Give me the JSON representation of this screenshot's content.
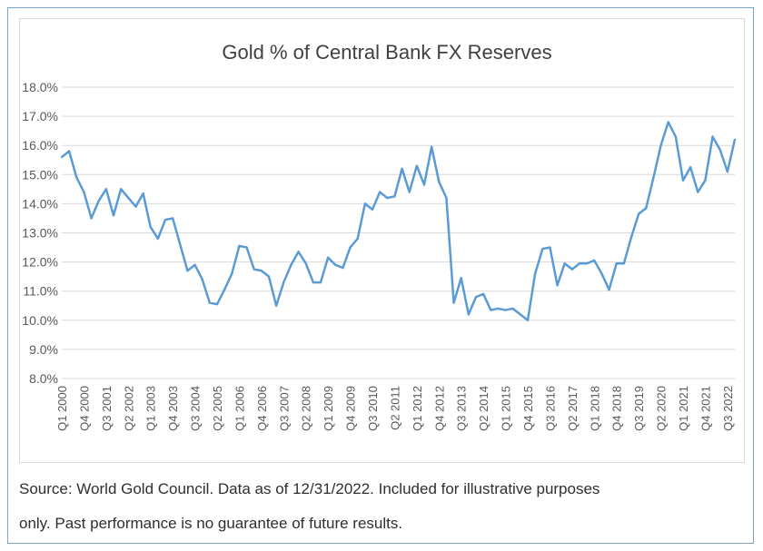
{
  "chart_data": {
    "type": "line",
    "title": "Gold % of Central Bank FX Reserves",
    "xlabel": "",
    "ylabel": "",
    "ylim": [
      8.0,
      18.0
    ],
    "y_ticks": [
      "8.0%",
      "9.0%",
      "10.0%",
      "11.0%",
      "12.0%",
      "13.0%",
      "14.0%",
      "15.0%",
      "16.0%",
      "17.0%",
      "18.0%"
    ],
    "y_tick_values": [
      8,
      9,
      10,
      11,
      12,
      13,
      14,
      15,
      16,
      17,
      18
    ],
    "x_tick_labels": [
      "Q1 2000",
      "Q4 2000",
      "Q3 2001",
      "Q2 2002",
      "Q1 2003",
      "Q4 2003",
      "Q3 2004",
      "Q2 2005",
      "Q1 2006",
      "Q4 2006",
      "Q3 2007",
      "Q2 2008",
      "Q1 2009",
      "Q4 2009",
      "Q3 2010",
      "Q2 2011",
      "Q1 2012",
      "Q4 2012",
      "Q3 2013",
      "Q2 2014",
      "Q1 2015",
      "Q4 2015",
      "Q3 2016",
      "Q2 2017",
      "Q1 2018",
      "Q4 2018",
      "Q3 2019",
      "Q2 2020",
      "Q1 2021",
      "Q4 2021",
      "Q3 2022"
    ],
    "grid": true,
    "legend": "none",
    "line_color": "#5b9bd5",
    "series": [
      {
        "values": [
          15.6,
          15.8,
          14.9,
          14.4,
          13.5,
          14.1,
          14.5,
          13.6,
          14.5,
          14.2,
          13.9,
          14.35,
          13.2,
          12.8,
          13.45,
          13.5,
          12.6,
          11.7,
          11.9,
          11.4,
          10.6,
          10.55,
          11.05,
          11.6,
          12.55,
          12.5,
          11.75,
          11.7,
          11.5,
          10.5,
          11.3,
          11.9,
          12.35,
          11.95,
          11.3,
          11.3,
          12.15,
          11.9,
          11.8,
          12.5,
          12.8,
          14.0,
          13.8,
          14.4,
          14.2,
          14.25,
          15.2,
          14.4,
          15.3,
          14.65,
          15.95,
          14.75,
          14.2,
          10.6,
          11.45,
          10.2,
          10.8,
          10.9,
          10.35,
          10.4,
          10.35,
          10.4,
          10.2,
          10.0,
          11.6,
          12.45,
          12.5,
          11.2,
          11.95,
          11.75,
          11.95,
          11.95,
          12.05,
          11.6,
          11.05,
          11.95,
          11.95,
          12.85,
          13.65,
          13.85,
          14.9,
          16.0,
          16.8,
          16.3,
          14.8,
          15.25,
          14.4,
          14.8,
          16.3,
          15.85,
          15.1,
          16.2
        ]
      }
    ]
  },
  "footer": {
    "source_line1": "Source: World Gold Council. Data as of 12/31/2022. Included for illustrative purposes",
    "source_line2": "only. Past performance is no guarantee of future results."
  }
}
